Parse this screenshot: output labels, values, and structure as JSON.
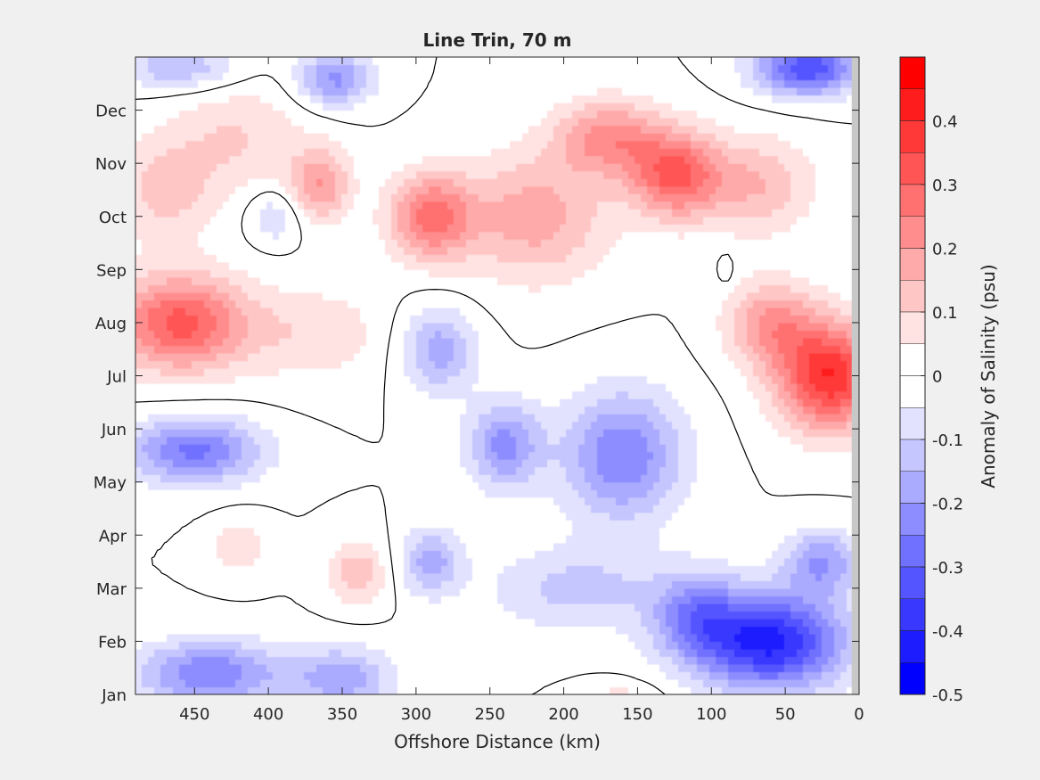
{
  "chart_data": {
    "type": "heatmap",
    "title": "Line Trin, 70 m",
    "xlabel": "Offshore Distance (km)",
    "ylabel": "",
    "colorbar_label": "Anomaly of Salinity (psu)",
    "xlim": [
      490,
      0
    ],
    "x_ticks": [
      {
        "value": 450,
        "label": "450"
      },
      {
        "value": 400,
        "label": "400"
      },
      {
        "value": 350,
        "label": "350"
      },
      {
        "value": 300,
        "label": "300"
      },
      {
        "value": 250,
        "label": "250"
      },
      {
        "value": 200,
        "label": "200"
      },
      {
        "value": 150,
        "label": "150"
      },
      {
        "value": 100,
        "label": "100"
      },
      {
        "value": 50,
        "label": "50"
      },
      {
        "value": 0,
        "label": "0"
      }
    ],
    "ylim": [
      1,
      13.0
    ],
    "y_ticks": [
      {
        "value": 1,
        "label": "Jan"
      },
      {
        "value": 2,
        "label": "Feb"
      },
      {
        "value": 3,
        "label": "Mar"
      },
      {
        "value": 4,
        "label": "Apr"
      },
      {
        "value": 5,
        "label": "May"
      },
      {
        "value": 6,
        "label": "Jun"
      },
      {
        "value": 7,
        "label": "Jul"
      },
      {
        "value": 8,
        "label": "Aug"
      },
      {
        "value": 9,
        "label": "Sep"
      },
      {
        "value": 10,
        "label": "Oct"
      },
      {
        "value": 11,
        "label": "Nov"
      },
      {
        "value": 12,
        "label": "Dec"
      }
    ],
    "colorbar": {
      "range": [
        -0.5,
        0.5
      ],
      "ticks": [
        {
          "value": 0.4,
          "label": "0.4"
        },
        {
          "value": 0.3,
          "label": "0.3"
        },
        {
          "value": 0.2,
          "label": "0.2"
        },
        {
          "value": 0.1,
          "label": "0.1"
        },
        {
          "value": 0,
          "label": "0"
        },
        {
          "value": -0.1,
          "label": "-0.1"
        },
        {
          "value": -0.2,
          "label": "-0.2"
        },
        {
          "value": -0.3,
          "label": "-0.3"
        },
        {
          "value": -0.4,
          "label": "-0.4"
        },
        {
          "value": -0.5,
          "label": "-0.5"
        }
      ],
      "levels": [
        {
          "min": 0.45,
          "max": 0.5,
          "color": "#ff0000"
        },
        {
          "min": 0.4,
          "max": 0.45,
          "color": "#ff1c1c"
        },
        {
          "min": 0.35,
          "max": 0.4,
          "color": "#ff3838"
        },
        {
          "min": 0.3,
          "max": 0.35,
          "color": "#ff5555"
        },
        {
          "min": 0.25,
          "max": 0.3,
          "color": "#ff7171"
        },
        {
          "min": 0.2,
          "max": 0.25,
          "color": "#ff8d8d"
        },
        {
          "min": 0.15,
          "max": 0.2,
          "color": "#ffaaaa"
        },
        {
          "min": 0.1,
          "max": 0.15,
          "color": "#ffc6c6"
        },
        {
          "min": 0.05,
          "max": 0.1,
          "color": "#ffe2e2"
        },
        {
          "min": 0,
          "max": 0.05,
          "color": "#ffffff"
        },
        {
          "min": -0.05,
          "max": 0,
          "color": "#ffffff"
        },
        {
          "min": -0.1,
          "max": -0.05,
          "color": "#e2e2ff"
        },
        {
          "min": -0.15,
          "max": -0.1,
          "color": "#c6c6ff"
        },
        {
          "min": -0.2,
          "max": -0.15,
          "color": "#aaaaff"
        },
        {
          "min": -0.25,
          "max": -0.2,
          "color": "#8d8dff"
        },
        {
          "min": -0.3,
          "max": -0.25,
          "color": "#7171ff"
        },
        {
          "min": -0.35,
          "max": -0.3,
          "color": "#5555ff"
        },
        {
          "min": -0.4,
          "max": -0.35,
          "color": "#3838ff"
        },
        {
          "min": -0.45,
          "max": -0.4,
          "color": "#1c1cff"
        },
        {
          "min": -0.5,
          "max": -0.45,
          "color": "#0000ff"
        }
      ]
    },
    "no_data_band": {
      "x_range": [
        5,
        0
      ],
      "color": "#c8c8c8"
    },
    "zero_contour_color": "#000000",
    "features": [
      {
        "kind": "anomaly",
        "x": 460,
        "y": 8.0,
        "value": 0.32,
        "sx": 45,
        "sy": 0.9
      },
      {
        "kind": "anomaly",
        "x": 470,
        "y": 10.5,
        "value": 0.12,
        "sx": 35,
        "sy": 1.0
      },
      {
        "kind": "anomaly",
        "x": 420,
        "y": 11.5,
        "value": 0.1,
        "sx": 45,
        "sy": 1.0
      },
      {
        "kind": "anomaly",
        "x": 370,
        "y": 7.8,
        "value": 0.09,
        "sx": 50,
        "sy": 0.9
      },
      {
        "kind": "anomaly",
        "x": 365,
        "y": 10.6,
        "value": 0.2,
        "sx": 20,
        "sy": 0.7
      },
      {
        "kind": "anomaly",
        "x": 290,
        "y": 10.0,
        "value": 0.27,
        "sx": 28,
        "sy": 0.8
      },
      {
        "kind": "anomaly",
        "x": 220,
        "y": 10.0,
        "value": 0.18,
        "sx": 50,
        "sy": 1.2
      },
      {
        "kind": "anomaly",
        "x": 170,
        "y": 11.5,
        "value": 0.22,
        "sx": 35,
        "sy": 0.7
      },
      {
        "kind": "anomaly",
        "x": 125,
        "y": 10.8,
        "value": 0.3,
        "sx": 30,
        "sy": 0.8
      },
      {
        "kind": "anomaly",
        "x": 70,
        "y": 10.6,
        "value": 0.15,
        "sx": 40,
        "sy": 0.9
      },
      {
        "kind": "anomaly",
        "x": 20,
        "y": 7.0,
        "value": 0.4,
        "sx": 35,
        "sy": 1.0
      },
      {
        "kind": "anomaly",
        "x": 60,
        "y": 8.0,
        "value": 0.2,
        "sx": 30,
        "sy": 0.8
      },
      {
        "kind": "anomaly",
        "x": 340,
        "y": 3.3,
        "value": 0.14,
        "sx": 20,
        "sy": 0.6
      },
      {
        "kind": "anomaly",
        "x": 420,
        "y": 3.8,
        "value": 0.1,
        "sx": 18,
        "sy": 0.5
      },
      {
        "kind": "anomaly",
        "x": 160,
        "y": 0.9,
        "value": 0.08,
        "sx": 25,
        "sy": 0.3
      },
      {
        "kind": "anomaly",
        "x": 450,
        "y": 5.6,
        "value": -0.27,
        "sx": 45,
        "sy": 0.6
      },
      {
        "kind": "anomaly",
        "x": 440,
        "y": 1.4,
        "value": -0.25,
        "sx": 50,
        "sy": 0.6
      },
      {
        "kind": "anomaly",
        "x": 350,
        "y": 1.3,
        "value": -0.18,
        "sx": 35,
        "sy": 0.6
      },
      {
        "kind": "anomaly",
        "x": 355,
        "y": 12.6,
        "value": -0.22,
        "sx": 25,
        "sy": 0.5
      },
      {
        "kind": "anomaly",
        "x": 460,
        "y": 12.8,
        "value": -0.15,
        "sx": 40,
        "sy": 0.4
      },
      {
        "kind": "anomaly",
        "x": 395,
        "y": 10.0,
        "value": -0.1,
        "sx": 18,
        "sy": 0.5
      },
      {
        "kind": "anomaly",
        "x": 285,
        "y": 7.5,
        "value": -0.18,
        "sx": 25,
        "sy": 0.8
      },
      {
        "kind": "anomaly",
        "x": 240,
        "y": 5.7,
        "value": -0.22,
        "sx": 25,
        "sy": 0.8
      },
      {
        "kind": "anomaly",
        "x": 160,
        "y": 5.5,
        "value": -0.25,
        "sx": 40,
        "sy": 1.2
      },
      {
        "kind": "anomaly",
        "x": 290,
        "y": 3.5,
        "value": -0.18,
        "sx": 20,
        "sy": 0.6
      },
      {
        "kind": "anomaly",
        "x": 190,
        "y": 3.0,
        "value": -0.12,
        "sx": 60,
        "sy": 0.8
      },
      {
        "kind": "anomaly",
        "x": 60,
        "y": 2.0,
        "value": -0.42,
        "sx": 50,
        "sy": 0.9
      },
      {
        "kind": "anomaly",
        "x": 110,
        "y": 2.5,
        "value": -0.2,
        "sx": 30,
        "sy": 0.8
      },
      {
        "kind": "anomaly",
        "x": 25,
        "y": 3.5,
        "value": -0.2,
        "sx": 25,
        "sy": 0.6
      },
      {
        "kind": "anomaly",
        "x": 35,
        "y": 12.8,
        "value": -0.35,
        "sx": 35,
        "sy": 0.5
      },
      {
        "kind": "anomaly",
        "x": 90,
        "y": 9.0,
        "value": -0.06,
        "sx": 5,
        "sy": 0.3
      }
    ]
  }
}
